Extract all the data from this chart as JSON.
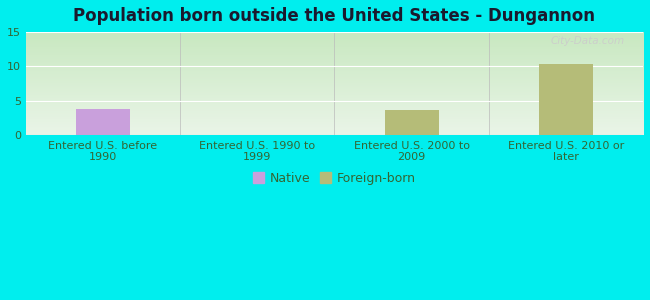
{
  "title": "Population born outside the United States - Dungannon",
  "categories": [
    "Entered U.S. before\n1990",
    "Entered U.S. 1990 to\n1999",
    "Entered U.S. 2000 to\n2009",
    "Entered U.S. 2010 or\nlater"
  ],
  "native_values": [
    3.8,
    0,
    0,
    0
  ],
  "foreign_born_values": [
    0,
    0,
    3.7,
    10.4
  ],
  "native_color": "#c9a0dc",
  "foreign_born_color": "#b5bc78",
  "background_color": "#00eeee",
  "gradient_top": "#eaf5e8",
  "gradient_bottom": "#c8e8c0",
  "ylim": [
    0,
    15
  ],
  "yticks": [
    0,
    5,
    10,
    15
  ],
  "title_fontsize": 12,
  "tick_fontsize": 8,
  "legend_fontsize": 9,
  "watermark": "City-Data.com",
  "bar_width": 0.35
}
